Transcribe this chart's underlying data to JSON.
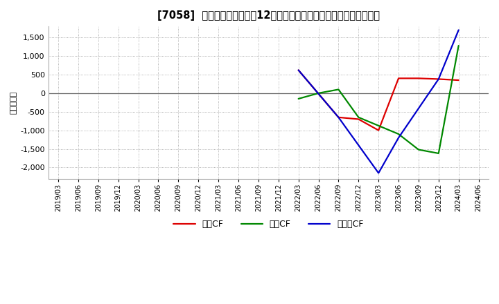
{
  "title": "[7058]  キャッシュフローの12か月移動合計の対前年同期増減額の推移",
  "ylabel": "（百万円）",
  "x_labels": [
    "2019/03",
    "2019/06",
    "2019/09",
    "2019/12",
    "2020/03",
    "2020/06",
    "2020/09",
    "2020/12",
    "2021/03",
    "2021/06",
    "2021/09",
    "2021/12",
    "2022/03",
    "2022/06",
    "2022/09",
    "2022/12",
    "2023/03",
    "2023/06",
    "2023/09",
    "2023/12",
    "2024/03",
    "2024/06"
  ],
  "operating_cf_data": {
    "2022/03": 620,
    "2022/09": -650,
    "2022/12": -700,
    "2023/03": -1000,
    "2023/06": 400,
    "2023/09": 400,
    "2023/12": 380,
    "2024/03": 350
  },
  "investing_cf_data": {
    "2022/03": -150,
    "2022/06": 0,
    "2022/09": 100,
    "2022/12": -650,
    "2023/06": -1100,
    "2023/09": -1520,
    "2023/12": -1620,
    "2024/03": 1280
  },
  "free_cf_data": {
    "2022/03": 620,
    "2022/09": -650,
    "2023/03": -2150,
    "2023/06": -1200,
    "2023/12": 380,
    "2024/03": 1700
  },
  "colors": {
    "operating_cf": "#dd0000",
    "investing_cf": "#008800",
    "free_cf": "#0000cc"
  },
  "labels": {
    "operating_cf": "営業CF",
    "investing_cf": "投資CF",
    "free_cf": "フリーCF"
  },
  "ylim": [
    -2300,
    1800
  ],
  "yticks": [
    -2000,
    -1500,
    -1000,
    -500,
    0,
    500,
    1000,
    1500
  ],
  "background_color": "#ffffff",
  "grid_color": "#999999",
  "linewidth": 1.6
}
